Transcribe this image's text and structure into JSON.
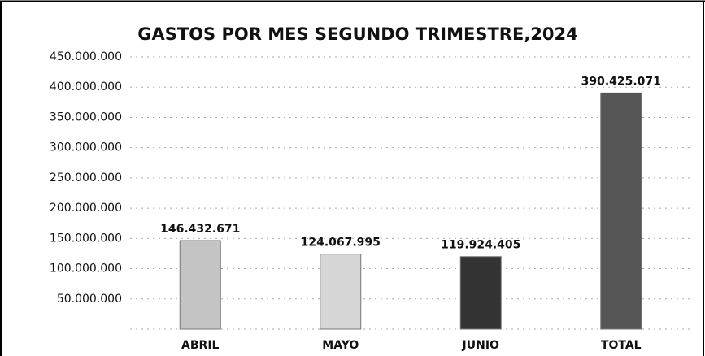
{
  "chart_data": {
    "type": "bar",
    "title": "GASTOS POR MES SEGUNDO TRIMESTRE,2024",
    "categories": [
      "ABRIL",
      "MAYO",
      "JUNIO",
      "TOTAL"
    ],
    "values": [
      146432671,
      124067995,
      119924405,
      390425071
    ],
    "value_labels": [
      "146.432.671",
      "124.067.995",
      "119.924.405",
      "390.425.071"
    ],
    "colors": [
      "#c4c4c4",
      "#d6d6d6",
      "#333333",
      "#555555"
    ],
    "ylim": [
      0,
      450000000
    ],
    "yticks": [
      {
        "value": 50000000,
        "label": "50.000.000"
      },
      {
        "value": 100000000,
        "label": "100.000.000"
      },
      {
        "value": 150000000,
        "label": "150.000.000"
      },
      {
        "value": 200000000,
        "label": "200.000.000"
      },
      {
        "value": 250000000,
        "label": "250.000.000"
      },
      {
        "value": 300000000,
        "label": "300.000.000"
      },
      {
        "value": 350000000,
        "label": "350.000.000"
      },
      {
        "value": 400000000,
        "label": "400.000.000"
      },
      {
        "value": 450000000,
        "label": "450.000.000"
      }
    ],
    "grid": true
  }
}
